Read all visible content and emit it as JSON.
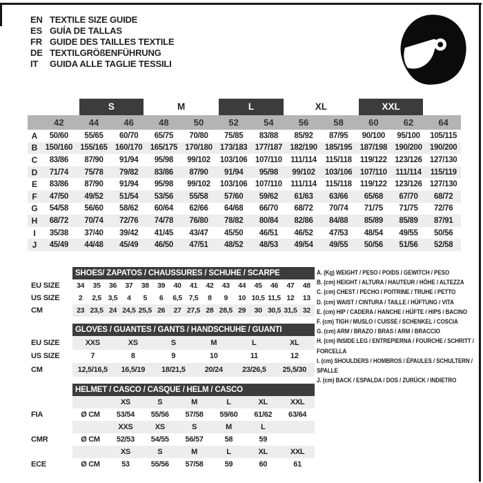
{
  "colors": {
    "dark_bar": "#3c3c3c",
    "size_row_bg": "#b4b4b4",
    "alt_row_bg": "#ededed",
    "border": "#161616",
    "text": "#222222"
  },
  "languages": [
    {
      "code": "EN",
      "title": "TEXTILE SIZE GUIDE"
    },
    {
      "code": "ES",
      "title": "GUÍA DE TALLAS"
    },
    {
      "code": "FR",
      "title": "GUIDE DES TAILLES TEXTILE"
    },
    {
      "code": "DE",
      "title": "TEXTILGRÖßENFÜHRUNG"
    },
    {
      "code": "IT",
      "title": "GUIDA ALLE TAGLIE TESSILI"
    }
  ],
  "textile": {
    "groups": [
      {
        "label": "",
        "dark": false,
        "cols": 1
      },
      {
        "label": "S",
        "dark": true,
        "cols": 2
      },
      {
        "label": "M",
        "dark": false,
        "cols": 2
      },
      {
        "label": "L",
        "dark": true,
        "cols": 2
      },
      {
        "label": "XL",
        "dark": false,
        "cols": 2
      },
      {
        "label": "XXL",
        "dark": true,
        "cols": 2
      },
      {
        "label": "",
        "dark": false,
        "cols": 1
      }
    ],
    "sizes": [
      "42",
      "44",
      "46",
      "48",
      "50",
      "52",
      "54",
      "56",
      "58",
      "60",
      "62",
      "64"
    ],
    "rows": [
      {
        "letter": "A",
        "values": [
          "50/60",
          "55/65",
          "60/70",
          "65/75",
          "70/80",
          "75/85",
          "83/88",
          "85/92",
          "87/95",
          "90/100",
          "95/100",
          "105/115"
        ]
      },
      {
        "letter": "B",
        "values": [
          "150/160",
          "155/165",
          "160/170",
          "165/175",
          "170/180",
          "173/183",
          "177/187",
          "182/190",
          "185/195",
          "187/198",
          "190/200",
          "190/200"
        ]
      },
      {
        "letter": "C",
        "values": [
          "83/86",
          "87/90",
          "91/94",
          "95/98",
          "99/102",
          "103/106",
          "107/110",
          "111/114",
          "115/118",
          "119/122",
          "123/126",
          "127/130"
        ]
      },
      {
        "letter": "D",
        "values": [
          "71/74",
          "75/78",
          "79/82",
          "83/86",
          "87/90",
          "91/94",
          "95/98",
          "99/102",
          "103/106",
          "107/110",
          "111/114",
          "115/119"
        ]
      },
      {
        "letter": "E",
        "values": [
          "83/86",
          "87/90",
          "91/94",
          "95/98",
          "99/102",
          "103/106",
          "107/110",
          "111/114",
          "115/118",
          "119/122",
          "123/126",
          "127/130"
        ]
      },
      {
        "letter": "F",
        "values": [
          "47/50",
          "49/52",
          "51/54",
          "53/56",
          "55/58",
          "57/60",
          "59/62",
          "61/63",
          "63/66",
          "65/68",
          "67/70",
          "68/72"
        ]
      },
      {
        "letter": "G",
        "values": [
          "54/58",
          "56/60",
          "58/62",
          "60/64",
          "62/66",
          "64/68",
          "66/70",
          "68/72",
          "70/74",
          "71/75",
          "71/75",
          "72/76"
        ]
      },
      {
        "letter": "H",
        "values": [
          "68/72",
          "70/74",
          "72/76",
          "74/78",
          "76/80",
          "78/82",
          "80/84",
          "82/86",
          "84/88",
          "85/89",
          "85/89",
          "87/91"
        ]
      },
      {
        "letter": "I",
        "values": [
          "35/38",
          "37/40",
          "39/42",
          "41/45",
          "43/47",
          "45/50",
          "46/51",
          "46/52",
          "47/53",
          "48/54",
          "49/55",
          "50/56"
        ]
      },
      {
        "letter": "J",
        "values": [
          "45/49",
          "44/48",
          "45/49",
          "46/50",
          "47/51",
          "48/52",
          "48/53",
          "49/54",
          "49/55",
          "50/56",
          "51/56",
          "52/58"
        ]
      }
    ]
  },
  "shoes": {
    "title": "SHOES/ ZAPATOS / CHAUSSURES / SCHUHE / SCARPE",
    "rows": [
      {
        "label": "EU SIZE",
        "shaded": false,
        "values": [
          "34",
          "35",
          "36",
          "37",
          "38",
          "39",
          "40",
          "41",
          "42",
          "43",
          "44",
          "45",
          "46",
          "47",
          "48"
        ]
      },
      {
        "label": "US SIZE",
        "shaded": false,
        "values": [
          "2",
          "2,5",
          "3,5",
          "4",
          "5",
          "6",
          "6,5",
          "7,5",
          "8",
          "9",
          "10",
          "10,5",
          "11,5",
          "12",
          "13"
        ]
      },
      {
        "label": "CM",
        "shaded": true,
        "values": [
          "23",
          "23,5",
          "24",
          "24,5",
          "25,5",
          "26",
          "27",
          "27,5",
          "28",
          "28,5",
          "29",
          "30",
          "30,5",
          "31,5",
          "32"
        ]
      }
    ]
  },
  "gloves": {
    "title": "GLOVES / GUANTES / GANTS / HANDSCHUHE / GUANTI",
    "rows": [
      {
        "label": "EU SIZE",
        "shaded": true,
        "values": [
          "XXS",
          "XS",
          "S",
          "M",
          "L",
          "XL"
        ]
      },
      {
        "label": "US SIZE",
        "shaded": false,
        "values": [
          "7",
          "8",
          "9",
          "10",
          "11",
          "12"
        ]
      },
      {
        "label": "CM",
        "shaded": true,
        "values": [
          "12,5/16,5",
          "16,5/19",
          "18/21,5",
          "20/24",
          "23/26,5",
          "25,5/30"
        ]
      }
    ]
  },
  "helmet": {
    "title": "HELMET / CASCO / CASQUE / HELM / CASCO",
    "unit": "Ø CM",
    "groups": [
      {
        "org": "FIA",
        "sizes": [
          "XS",
          "S",
          "M",
          "L",
          "XL",
          "XXL"
        ],
        "values": [
          "53/54",
          "55/56",
          "57/58",
          "59/60",
          "61/62",
          "63/64"
        ]
      },
      {
        "org": "CMR",
        "sizes": [
          "XXS",
          "XS",
          "S",
          "M",
          "L",
          ""
        ],
        "values": [
          "52/53",
          "54/55",
          "56/57",
          "58",
          "59",
          ""
        ]
      },
      {
        "org": "ECE",
        "sizes": [
          "XS",
          "S",
          "M",
          "L",
          "XL",
          "XXL"
        ],
        "values": [
          "53",
          "55/56",
          "57/58",
          "59",
          "60",
          "61"
        ]
      }
    ]
  },
  "legend": [
    "A. (Kg) WEIGHT / PESO / POIDS / GEWITCH / PESO",
    "B. (cm) HEIGHT / ALTURA / HAUTEUR / HÖHE / ALTEZZA",
    "C. (cm) CHEST / PECHO / POITRINE / TRUHE / PETTO",
    "D. (cm) WAIST / CINTURA / TAILLE / HÜFTUNG / VITA",
    "E. (cm) HIP / CADERA / HANCHE / HÜFTE / HIPS / BACINO",
    "F. (cm) TIGH / MUSLO / CUISSE / SCHENKEL / COSCIA",
    "G. (cm) ARM / BRAZO / BRAS / ARM / BRACCIO",
    "H. (cm) INSIDE LEG / ENTREPIERNA / FOURCHE / SCHRITT / FORCELLA",
    "I. (cm) SHOULDERS / HOMBROS / ÉPAULES / SCHULTERN / SPALLE",
    "J. (cm) BACK / ESPALDA / DOS / ZURÜCK / INDIETRO"
  ]
}
